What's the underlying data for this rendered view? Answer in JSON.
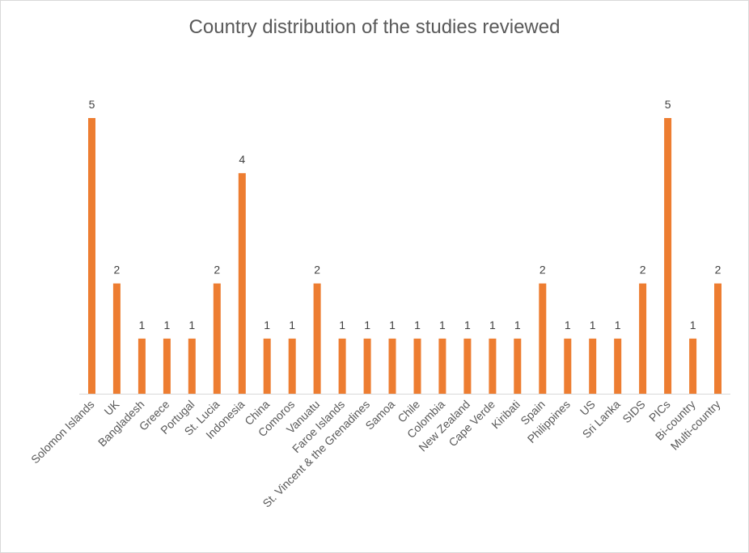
{
  "chart_data": {
    "type": "bar",
    "title": "Country distribution of the studies reviewed",
    "categories": [
      "Solomon Islands",
      "UK",
      "Bangladesh",
      "Greece",
      "Portugal",
      "St. Lucia",
      "Indonesia",
      "China",
      "Comoros",
      "Vanuatu",
      "Faroe Islands",
      "St. Vincent & the Grenadines",
      "Samoa",
      "Chile",
      "Colombia",
      "New Zealand",
      "Cape Verde",
      "Kiribati",
      "Spain",
      "Philippines",
      "US",
      "Sri Lanka",
      "SIDS",
      "PICs",
      "Bi-country",
      "Multi-country"
    ],
    "values": [
      5,
      2,
      1,
      1,
      1,
      2,
      4,
      1,
      1,
      2,
      1,
      1,
      1,
      1,
      1,
      1,
      1,
      1,
      2,
      1,
      1,
      1,
      2,
      5,
      1,
      2
    ],
    "ylim": [
      0,
      5
    ],
    "grid": false,
    "legend": "none",
    "data_labels": true,
    "bar_color": "#ED7D31",
    "xlabel": "",
    "ylabel": ""
  }
}
